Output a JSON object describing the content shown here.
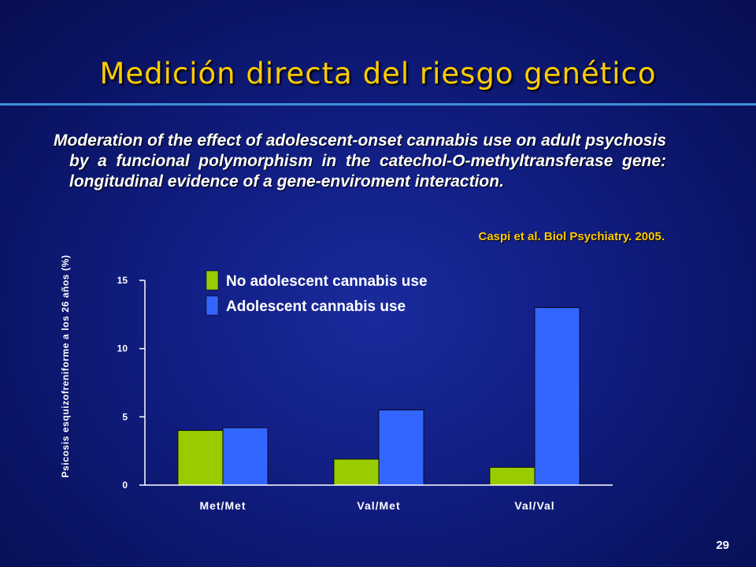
{
  "slide": {
    "title": "Medición directa del riesgo genético",
    "subtitle": "Moderation of the effect of adolescent-onset cannabis use on adult psychosis by a funcional polymorphism in the catechol-O-methyltransferase gene: longitudinal evidence of a gene-enviroment interaction.",
    "citation": "Caspi et al. Biol Psychiatry. 2005.",
    "page_number": "29"
  },
  "chart_data": {
    "type": "bar",
    "title": "",
    "xlabel": "",
    "ylabel": "Psicosis esquizofreniforme a los 26 años (%)",
    "categories": [
      "Met/Met",
      "Val/Met",
      "Val/Val"
    ],
    "ylim": [
      0,
      15
    ],
    "yticks": [
      0,
      5,
      10,
      15
    ],
    "grid": false,
    "legend_position": "top-center",
    "series": [
      {
        "name": "No adolescent cannabis use",
        "color": "#99cc00",
        "values": [
          4.0,
          1.9,
          1.3
        ]
      },
      {
        "name": "Adolescent cannabis use",
        "color": "#3366ff",
        "values": [
          4.2,
          5.5,
          13.0
        ]
      }
    ]
  }
}
